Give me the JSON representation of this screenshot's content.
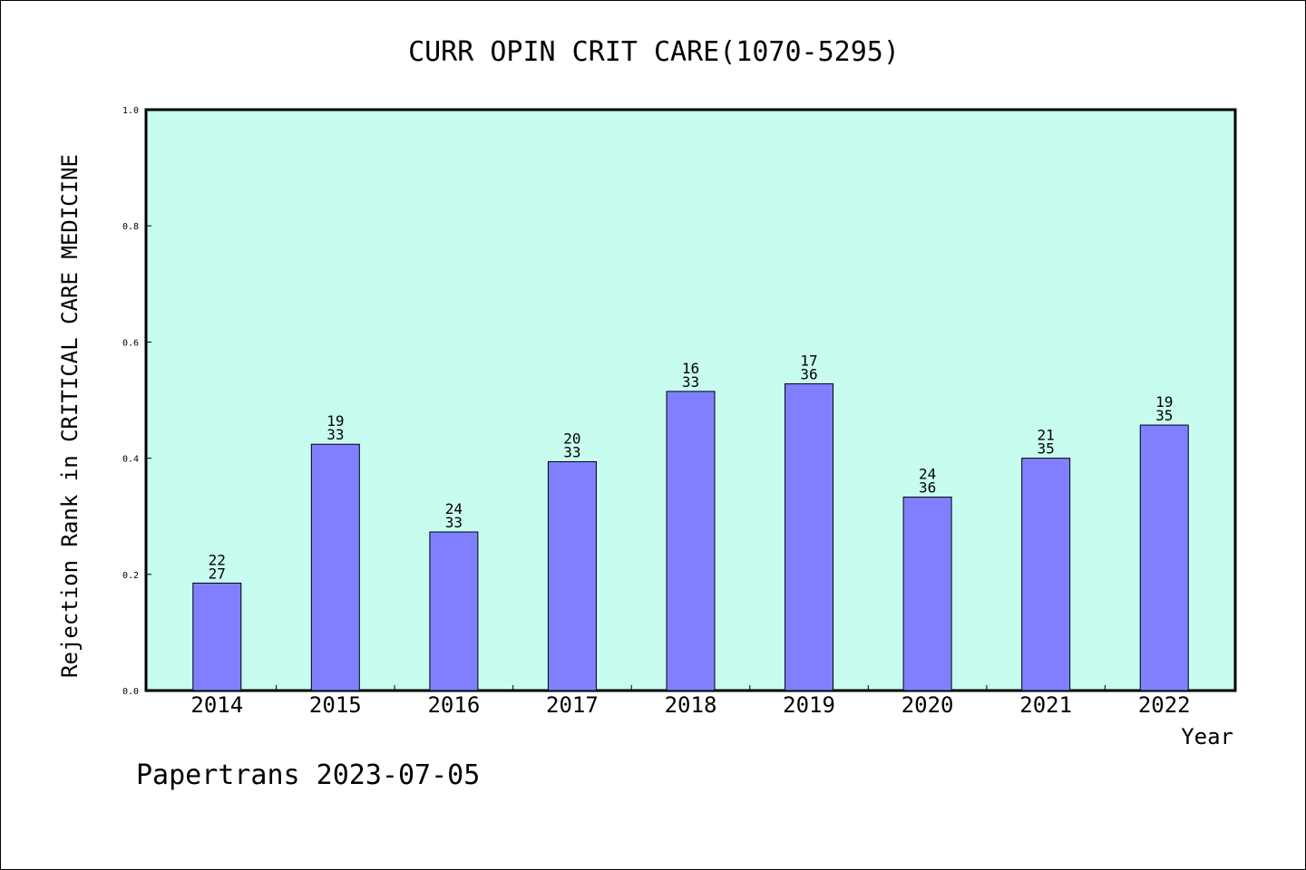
{
  "chart_data": {
    "type": "bar",
    "title": "CURR OPIN CRIT CARE(1070-5295)",
    "xlabel": "Year",
    "ylabel": "Rejection Rank in CRITICAL CARE MEDICINE",
    "ylim": [
      0,
      1.0
    ],
    "yticks": [
      "0.0",
      "0.2",
      "0.4",
      "0.6",
      "0.8",
      "1.0"
    ],
    "categories": [
      "2014",
      "2015",
      "2016",
      "2017",
      "2018",
      "2019",
      "2020",
      "2021",
      "2022"
    ],
    "values": [
      0.185,
      0.424,
      0.273,
      0.394,
      0.515,
      0.528,
      0.333,
      0.4,
      0.457
    ],
    "rank_labels": [
      {
        "rank": "22",
        "total": "27"
      },
      {
        "rank": "19",
        "total": "33"
      },
      {
        "rank": "24",
        "total": "33"
      },
      {
        "rank": "20",
        "total": "33"
      },
      {
        "rank": "16",
        "total": "33"
      },
      {
        "rank": "17",
        "total": "36"
      },
      {
        "rank": "24",
        "total": "36"
      },
      {
        "rank": "21",
        "total": "35"
      },
      {
        "rank": "19",
        "total": "35"
      }
    ],
    "grid": false,
    "colors": {
      "plot_background": "#c8fcf0",
      "bar_fill": "#8080ff",
      "bar_stroke": "#000000"
    }
  },
  "footer": {
    "credit": "Papertrans 2023-07-05"
  }
}
